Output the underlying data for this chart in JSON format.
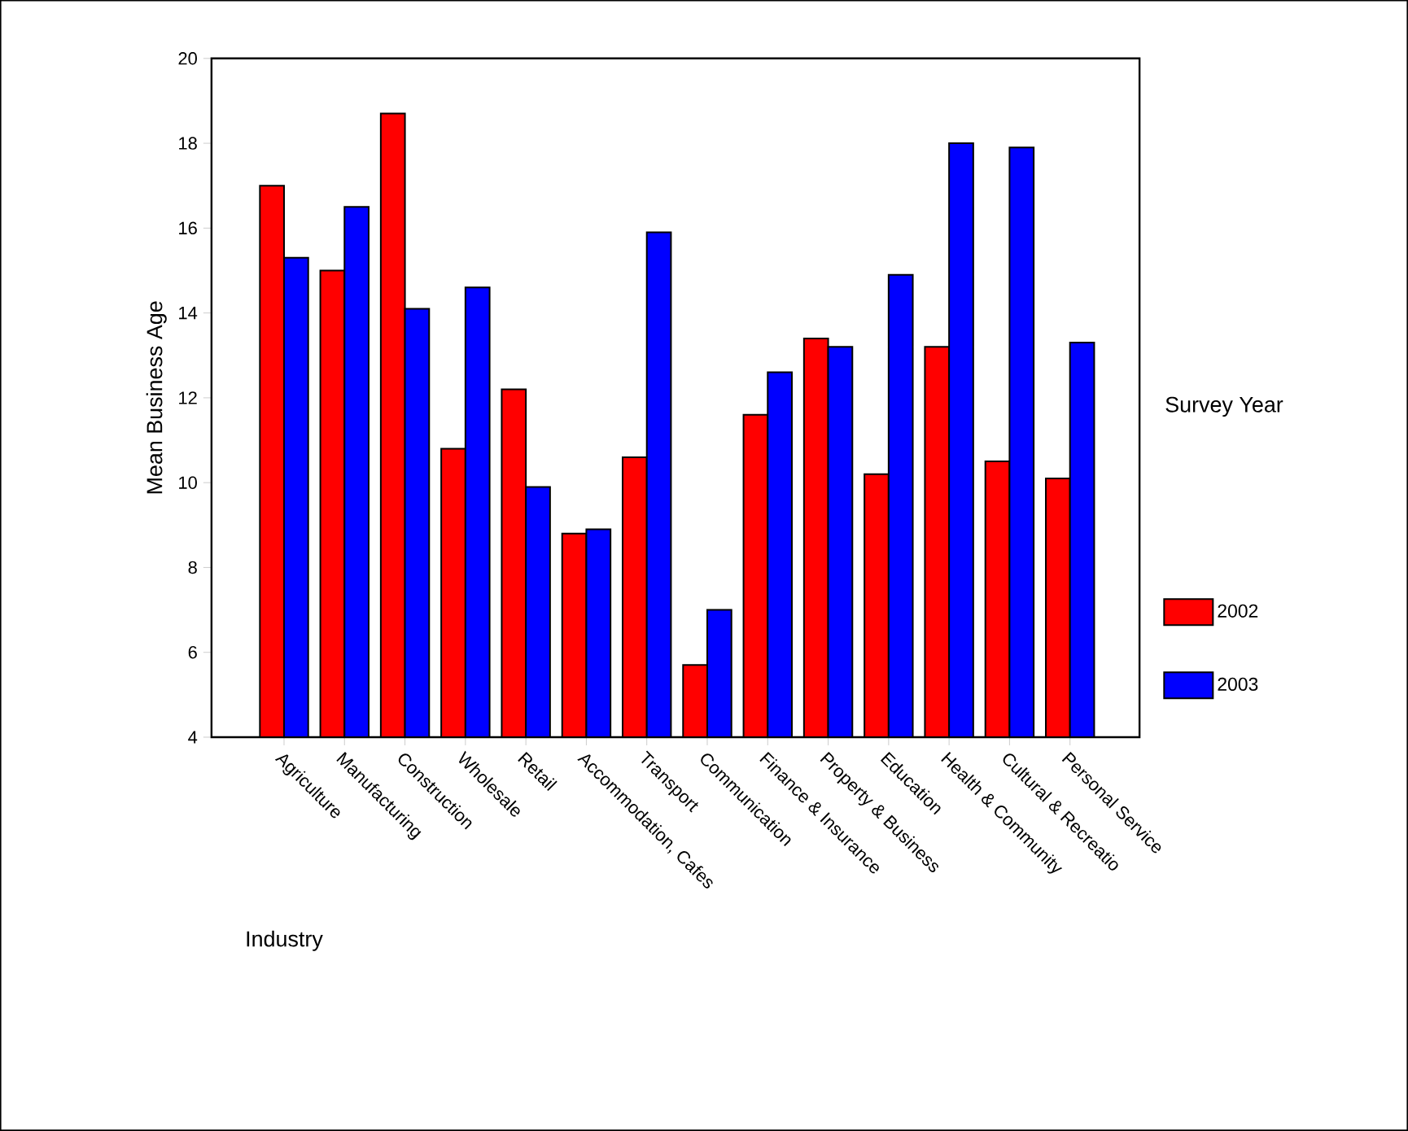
{
  "chart_data": {
    "type": "bar",
    "xlabel": "Industry",
    "ylabel": "Mean Business Age",
    "legend_title": "Survey Year",
    "categories": [
      "Agriculture",
      "Manufacturing",
      "Construction",
      "Wholesale",
      "Retail",
      "Accommodation, Cafes",
      "Transport",
      "Communication",
      "Finance & Insurance",
      "Property & Business",
      "Education",
      "Health & Community",
      "Cultural & Recreatio",
      "Personal Service"
    ],
    "series": [
      {
        "name": "2002",
        "color": "#ff0000",
        "values": [
          17.0,
          15.0,
          18.7,
          10.8,
          12.2,
          8.8,
          10.6,
          5.7,
          11.6,
          13.4,
          10.2,
          13.2,
          10.5,
          10.1
        ]
      },
      {
        "name": "2003",
        "color": "#0000ff",
        "values": [
          15.3,
          16.5,
          14.1,
          14.6,
          9.9,
          8.9,
          15.9,
          7.0,
          12.6,
          13.2,
          14.9,
          18.0,
          17.9,
          13.3
        ]
      }
    ],
    "ylim": [
      4,
      20
    ],
    "yticks": [
      4,
      6,
      8,
      10,
      12,
      14,
      16,
      18,
      20
    ],
    "grid": false,
    "legend": "right"
  }
}
